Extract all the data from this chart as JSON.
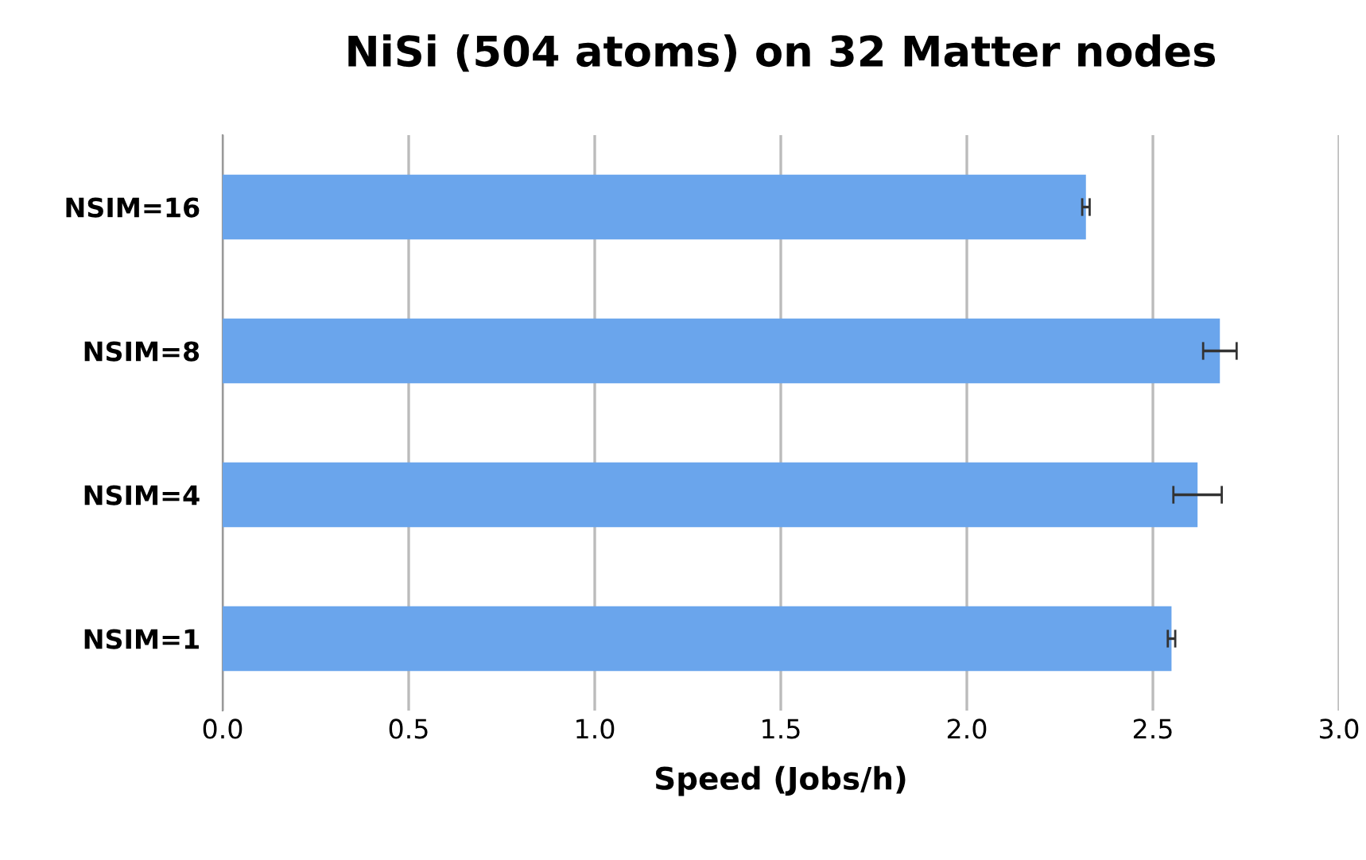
{
  "chart_data": {
    "type": "bar",
    "orientation": "horizontal",
    "title": "NiSi (504 atoms) on 32 Matter nodes",
    "xlabel": "Speed (Jobs/h)",
    "categories": [
      "NSIM=16",
      "NSIM=8",
      "NSIM=4",
      "NSIM=1"
    ],
    "values": [
      2.32,
      2.68,
      2.62,
      2.55
    ],
    "errors": [
      0.01,
      0.045,
      0.065,
      0.01
    ],
    "color": "#6aa5ec",
    "xlim": [
      0,
      3
    ],
    "xticks": [
      {
        "value": 0,
        "label": "0.0"
      },
      {
        "value": 0.5,
        "label": "0.5"
      },
      {
        "value": 1,
        "label": "1.0"
      },
      {
        "value": 1.5,
        "label": "1.5"
      },
      {
        "value": 2,
        "label": "2.0"
      },
      {
        "value": 2.5,
        "label": "2.5"
      },
      {
        "value": 3,
        "label": "3.0"
      }
    ],
    "grid": "x"
  }
}
